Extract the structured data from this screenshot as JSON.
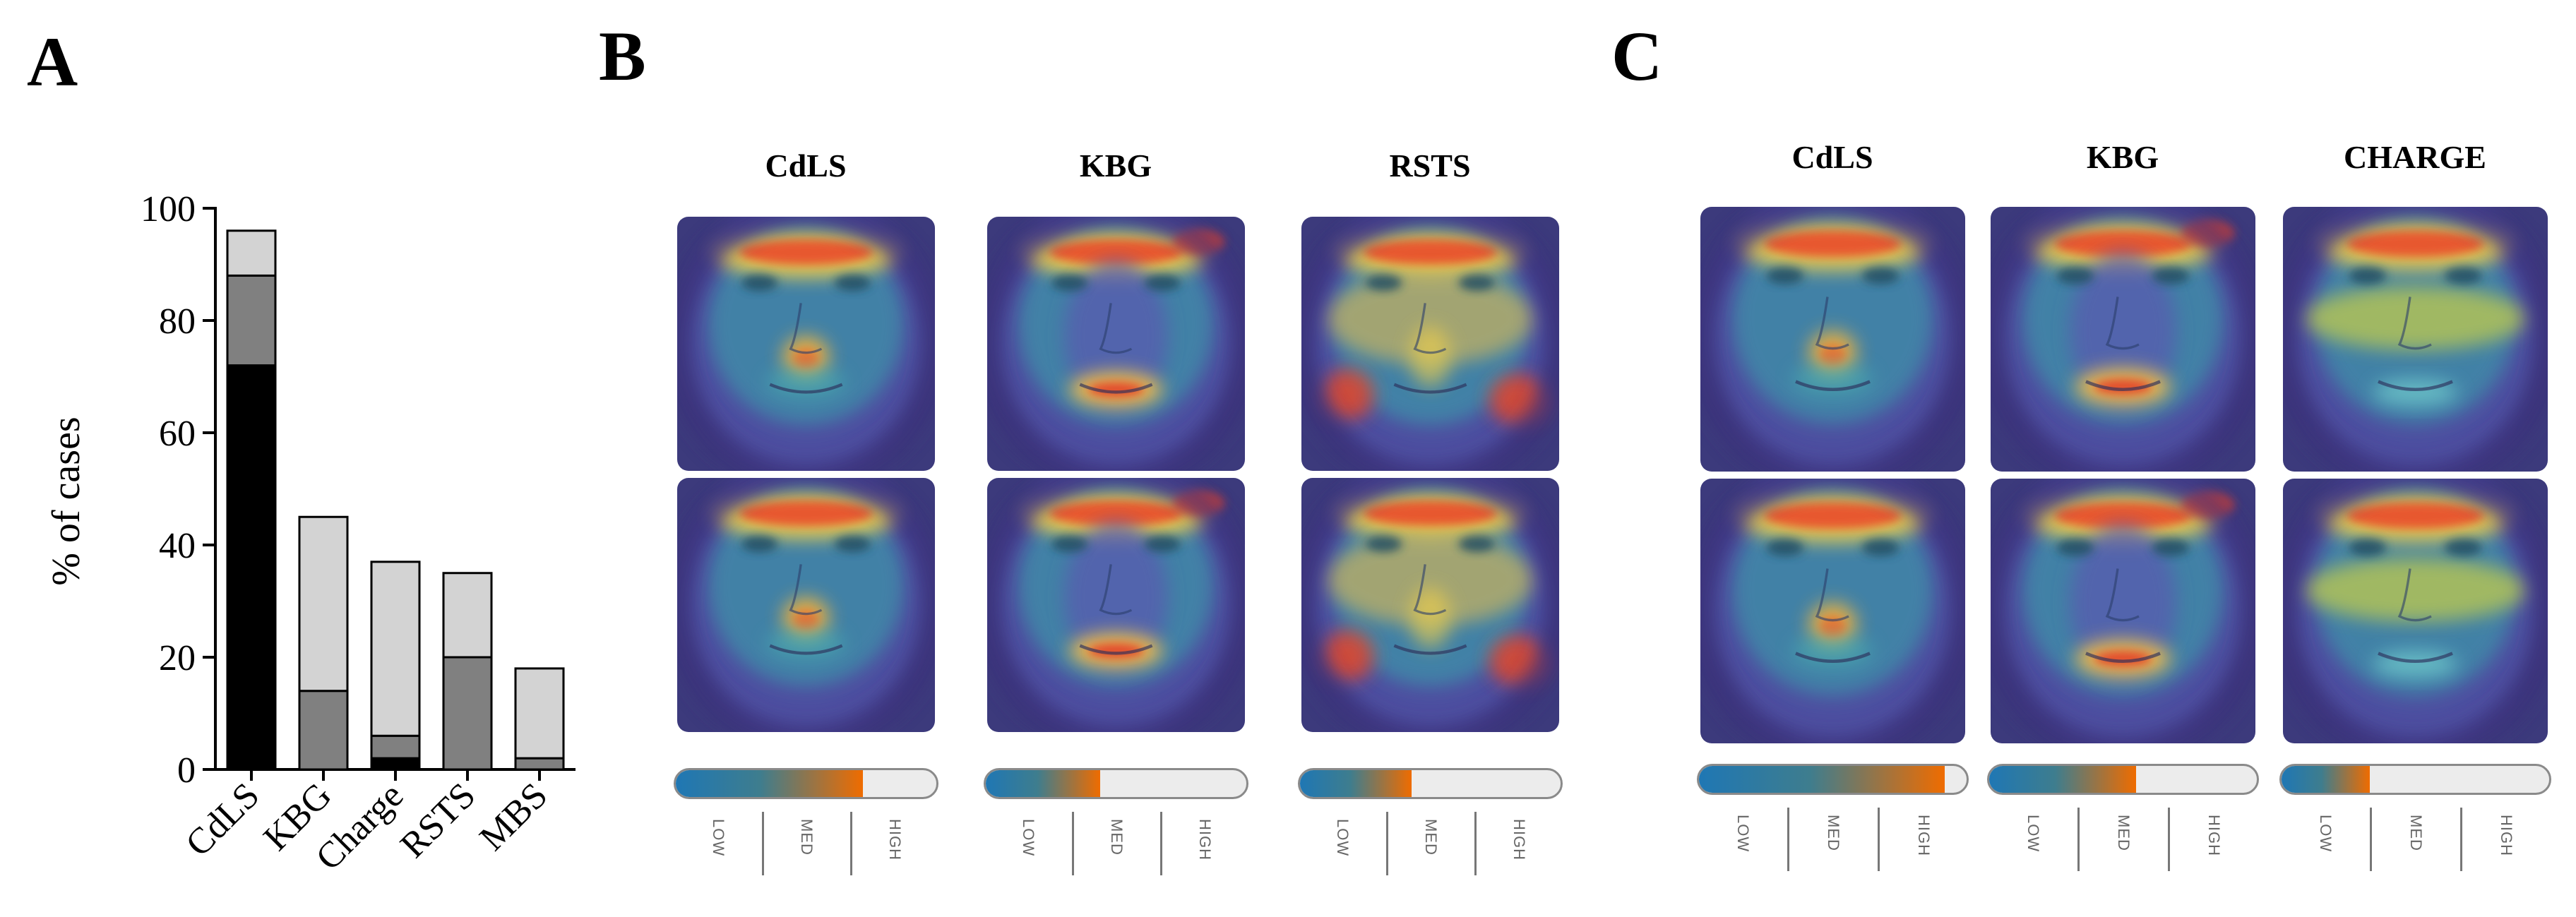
{
  "panels": {
    "A": "A",
    "B": "B",
    "C": "C"
  },
  "chart_data": {
    "type": "bar",
    "stacked": true,
    "title": "",
    "xlabel": "",
    "ylabel": "% of cases",
    "ylim": [
      0,
      100
    ],
    "yticks": [
      "0",
      "20",
      "40",
      "60",
      "80",
      "100"
    ],
    "categories": [
      "CdLS",
      "KBG",
      "Charge",
      "RSTS",
      "MBS"
    ],
    "series": [
      {
        "name": "black segment",
        "color": "#000000",
        "values": [
          72,
          0,
          2,
          0,
          0
        ]
      },
      {
        "name": "dark grey segment",
        "color": "#808080",
        "values": [
          16,
          14,
          4,
          20,
          2
        ]
      },
      {
        "name": "light grey segment",
        "color": "#d3d3d3",
        "values": [
          8,
          31,
          31,
          15,
          16
        ]
      }
    ]
  },
  "panelB": {
    "columns": [
      {
        "title": "CdLS",
        "level": 0.72
      },
      {
        "title": "KBG",
        "level": 0.44
      },
      {
        "title": "RSTS",
        "level": 0.43
      }
    ]
  },
  "panelC": {
    "columns": [
      {
        "title": "CdLS",
        "level": 0.92
      },
      {
        "title": "KBG",
        "level": 0.55
      },
      {
        "title": "CHARGE",
        "level": 0.33
      }
    ]
  },
  "scale": {
    "low": "LOW",
    "med": "MED",
    "high": "HIGH"
  },
  "colors": {
    "meter_start": "#1f77b4",
    "meter_end": "#ef6c00",
    "meter_track": "#ececec"
  }
}
